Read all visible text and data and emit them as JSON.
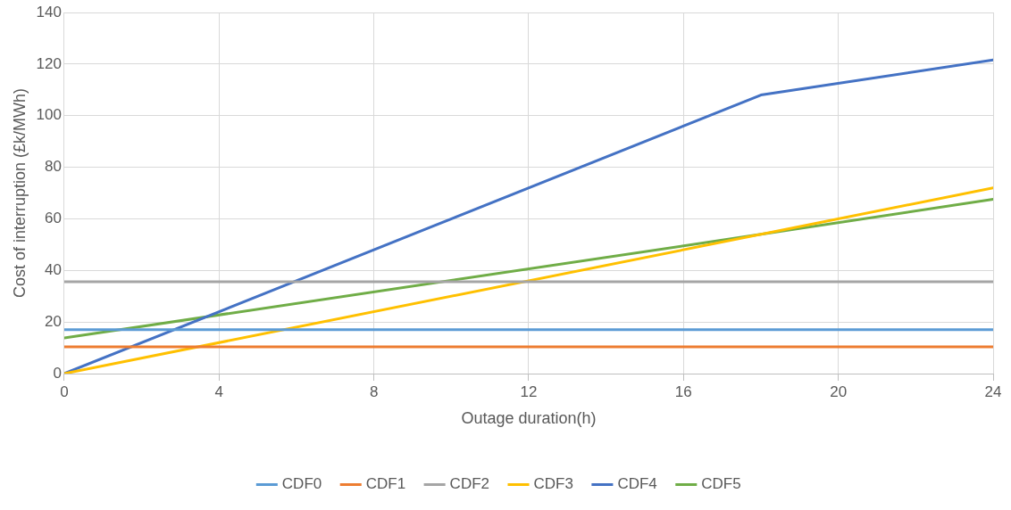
{
  "chart_data": {
    "type": "line",
    "xlabel": "Outage duration(h)",
    "ylabel": "Cost of interruption (£k/MWh)",
    "xlim": [
      0,
      24
    ],
    "xticks": [
      0,
      4,
      8,
      12,
      16,
      20,
      24
    ],
    "ylim": [
      0,
      140
    ],
    "yticks": [
      0,
      20,
      40,
      60,
      80,
      100,
      120,
      140
    ],
    "grid": true,
    "legend": "bottom",
    "marker": "none",
    "line_style": "solid",
    "series": [
      {
        "name": "CDF0",
        "color": "#5b9bd5",
        "x": [
          0,
          24
        ],
        "values": [
          17,
          17
        ]
      },
      {
        "name": "CDF1",
        "color": "#ed7d31",
        "x": [
          0,
          24
        ],
        "values": [
          10.4,
          10.4
        ]
      },
      {
        "name": "CDF2",
        "color": "#a5a5a5",
        "x": [
          0,
          24
        ],
        "values": [
          35.6,
          35.6
        ]
      },
      {
        "name": "CDF3",
        "color": "#ffc000",
        "x": [
          0,
          24
        ],
        "values": [
          0,
          72
        ]
      },
      {
        "name": "CDF4",
        "color": "#4472c4",
        "x": [
          0,
          18,
          24
        ],
        "values": [
          0,
          108,
          121.6
        ]
      },
      {
        "name": "CDF5",
        "color": "#70ad47",
        "x": [
          0,
          18,
          24
        ],
        "values": [
          13.8,
          54,
          67.6
        ]
      }
    ]
  }
}
